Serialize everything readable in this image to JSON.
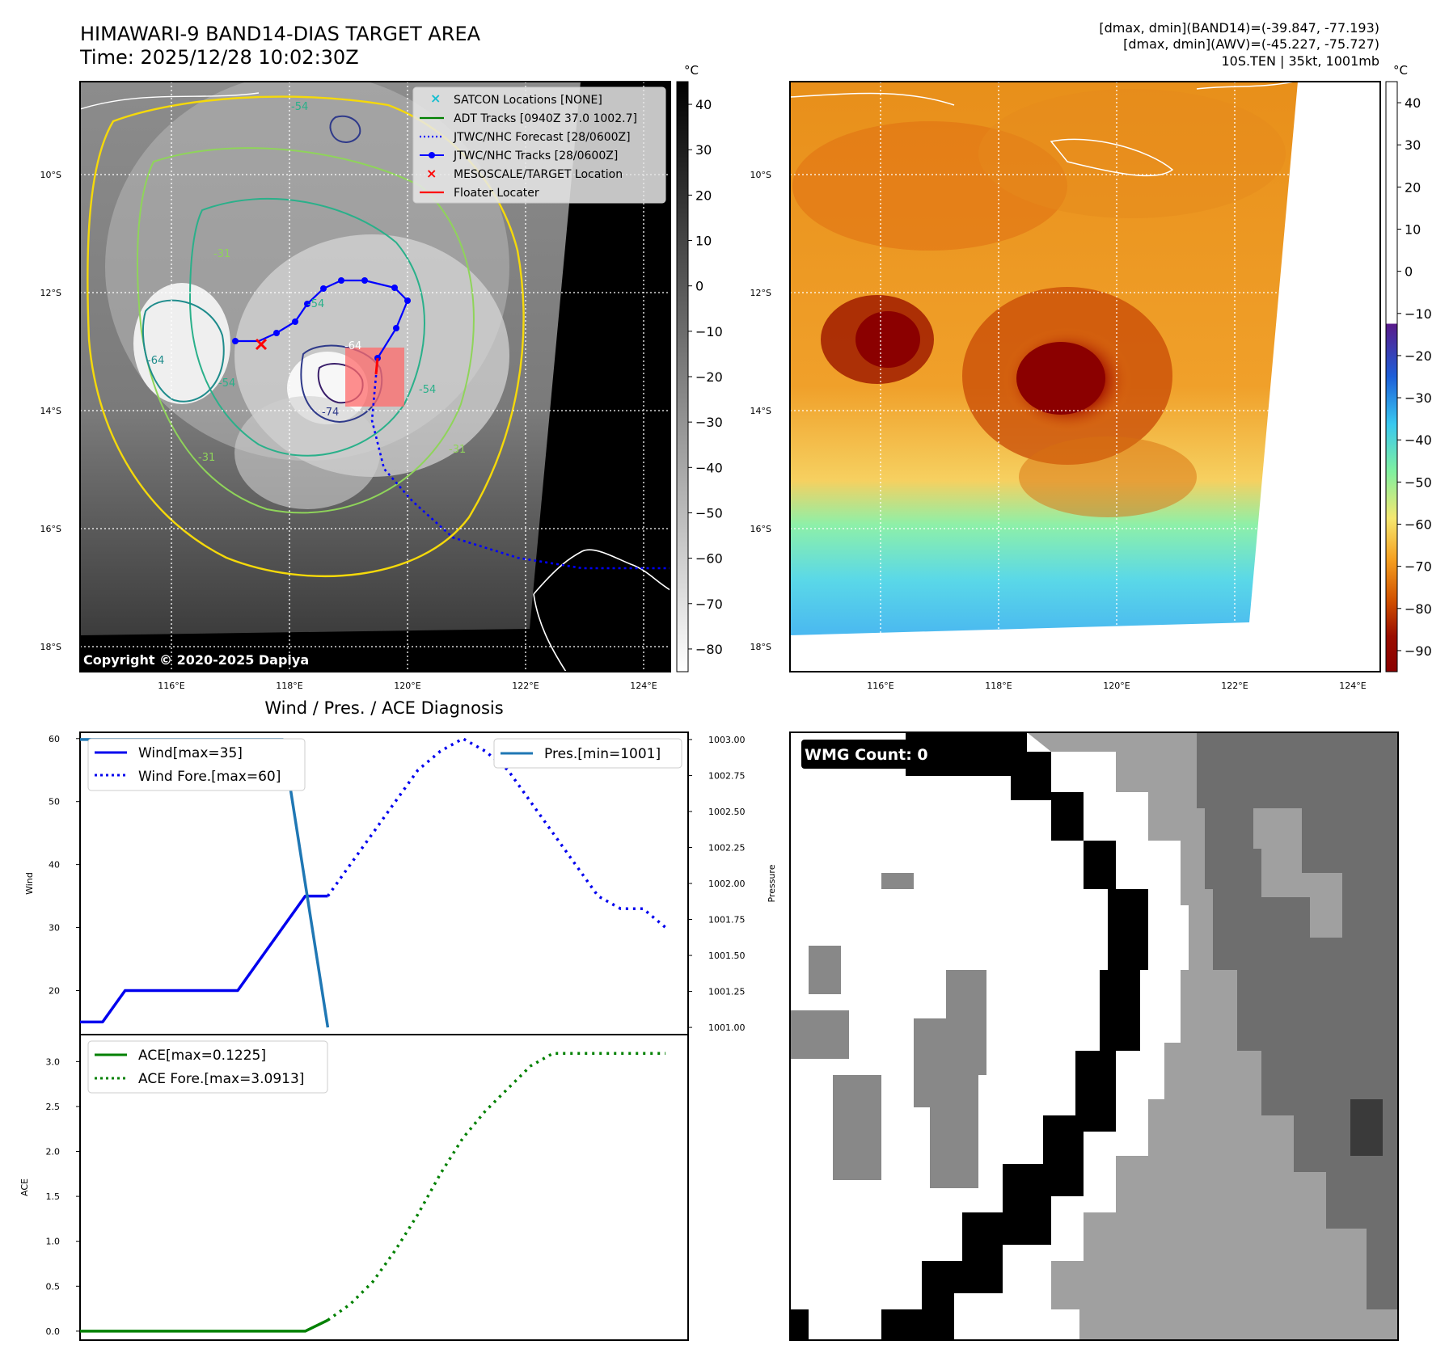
{
  "header": {
    "title_line1": "HIMAWARI-9 BAND14-DIAS TARGET AREA",
    "title_line2": "Time: 2025/12/28 10:02:30Z",
    "stats_line1": "[dmax, dmin](BAND14)=(-39.847, -77.193)",
    "stats_line2": "[dmax, dmin](AWV)=(-45.227, -75.727)",
    "stats_line3": "10S.TEN | 35kt, 1001mb"
  },
  "colors": {
    "wind": "#0000ee",
    "pressure": "#1f77b4",
    "ace": "#008000",
    "track": "#0000ff",
    "target": "#ff0000",
    "satcon": "#17becf",
    "adt": "#008000"
  },
  "map_left": {
    "unit": "°C",
    "cbar_ticks": [
      "40",
      "30",
      "20",
      "10",
      "0",
      "−10",
      "−20",
      "−30",
      "−40",
      "−50",
      "−60",
      "−70",
      "−80"
    ],
    "lat_labels": [
      "10°S",
      "12°S",
      "14°S",
      "16°S",
      "18°S"
    ],
    "lon_labels": [
      "116°E",
      "118°E",
      "120°E",
      "122°E",
      "124°E"
    ],
    "contour_labels": [
      "-54",
      "-31",
      "-64",
      "-54",
      "-54",
      "-64",
      "-74",
      "-31",
      "-54",
      "-31"
    ],
    "copyright": "Copyright © 2020-2025 Dapiya",
    "legend": [
      {
        "label": "SATCON Locations [NONE]",
        "icon": "cyan-x-marker"
      },
      {
        "label": "ADT Tracks [0940Z 37.0 1002.7]",
        "icon": "green-line"
      },
      {
        "label": "JTWC/NHC Forecast [28/0600Z]",
        "icon": "blue-dotted-line"
      },
      {
        "label": "JTWC/NHC Tracks [28/0600Z]",
        "icon": "blue-line-dot"
      },
      {
        "label": "MESOSCALE/TARGET Location",
        "icon": "red-x-marker"
      },
      {
        "label": "Floater Locater",
        "icon": "red-line"
      }
    ]
  },
  "map_right": {
    "unit": "°C",
    "cbar_ticks": [
      "40",
      "30",
      "20",
      "10",
      "0",
      "−10",
      "−20",
      "−30",
      "−40",
      "−50",
      "−60",
      "−70",
      "−80",
      "−90"
    ],
    "lat_labels": [
      "10°S",
      "12°S",
      "14°S",
      "16°S",
      "18°S"
    ],
    "lon_labels": [
      "116°E",
      "118°E",
      "120°E",
      "122°E",
      "124°E"
    ]
  },
  "wmg_panel": {
    "label": "WMG Count: 0"
  },
  "chart_data": [
    {
      "type": "line",
      "title": "Wind / Pres. / ACE Diagnosis",
      "ylabel": "Wind",
      "y2label": "Pressure",
      "ylim": [
        13,
        61
      ],
      "y2lim": [
        1000.95,
        1003.05
      ],
      "yticks": [
        20,
        30,
        40,
        50,
        60
      ],
      "y2ticks": [
        1001.0,
        1001.25,
        1001.5,
        1001.75,
        1002.0,
        1002.25,
        1002.5,
        1002.75,
        1003.0
      ],
      "y2tick_labels": [
        "1001.00",
        "1001.25",
        "1001.50",
        "1001.75",
        "1002.00",
        "1002.25",
        "1002.50",
        "1002.75",
        "1003.00"
      ],
      "xlim": [
        0,
        27
      ],
      "series": [
        {
          "name": "Wind[max=35]",
          "style": "solid",
          "color": "#0000ee",
          "axis": "left",
          "x": [
            0,
            1,
            2,
            3,
            4,
            5,
            6,
            7,
            8,
            9,
            10,
            11
          ],
          "values": [
            15,
            15,
            20,
            20,
            20,
            20,
            20,
            20,
            25,
            30,
            35,
            35
          ]
        },
        {
          "name": "Wind Fore.[max=60]",
          "style": "dotted",
          "color": "#0000ee",
          "axis": "left",
          "x": [
            11,
            12,
            13,
            14,
            15,
            16,
            17,
            18,
            19,
            20,
            21,
            22,
            23,
            24,
            25,
            26
          ],
          "values": [
            35,
            40,
            45,
            50,
            55,
            58,
            60,
            58,
            55,
            50,
            45,
            40,
            35,
            33,
            33,
            30
          ]
        },
        {
          "name": "Pres.[min=1001]",
          "style": "solid",
          "color": "#1f77b4",
          "axis": "right",
          "x": [
            0,
            1,
            2,
            3,
            4,
            5,
            6,
            7,
            8,
            9,
            10,
            11
          ],
          "values": [
            1003,
            1003,
            1003,
            1003,
            1003,
            1003,
            1003,
            1003,
            1003,
            1003,
            1002,
            1001
          ]
        }
      ]
    },
    {
      "type": "line",
      "ylabel": "ACE",
      "ylim": [
        -0.1,
        3.3
      ],
      "yticks": [
        0.0,
        0.5,
        1.0,
        1.5,
        2.0,
        2.5,
        3.0
      ],
      "ytick_labels": [
        "0.0",
        "0.5",
        "1.0",
        "1.5",
        "2.0",
        "2.5",
        "3.0"
      ],
      "xlim": [
        0,
        27
      ],
      "series": [
        {
          "name": "ACE[max=0.1225]",
          "style": "solid",
          "color": "#008000",
          "x": [
            0,
            1,
            2,
            3,
            4,
            5,
            6,
            7,
            8,
            9,
            10,
            11
          ],
          "values": [
            0,
            0,
            0,
            0,
            0,
            0,
            0,
            0,
            0,
            0,
            0.0,
            0.1225
          ]
        },
        {
          "name": "ACE Fore.[max=3.0913]",
          "style": "dotted",
          "color": "#008000",
          "x": [
            11,
            12,
            13,
            14,
            15,
            16,
            17,
            18,
            19,
            20,
            21,
            22,
            23,
            24,
            25,
            26
          ],
          "values": [
            0.1225,
            0.3,
            0.55,
            0.9,
            1.3,
            1.75,
            2.15,
            2.45,
            2.7,
            2.95,
            3.0913,
            3.0913,
            3.0913,
            3.0913,
            3.0913,
            3.0913
          ]
        }
      ]
    }
  ]
}
